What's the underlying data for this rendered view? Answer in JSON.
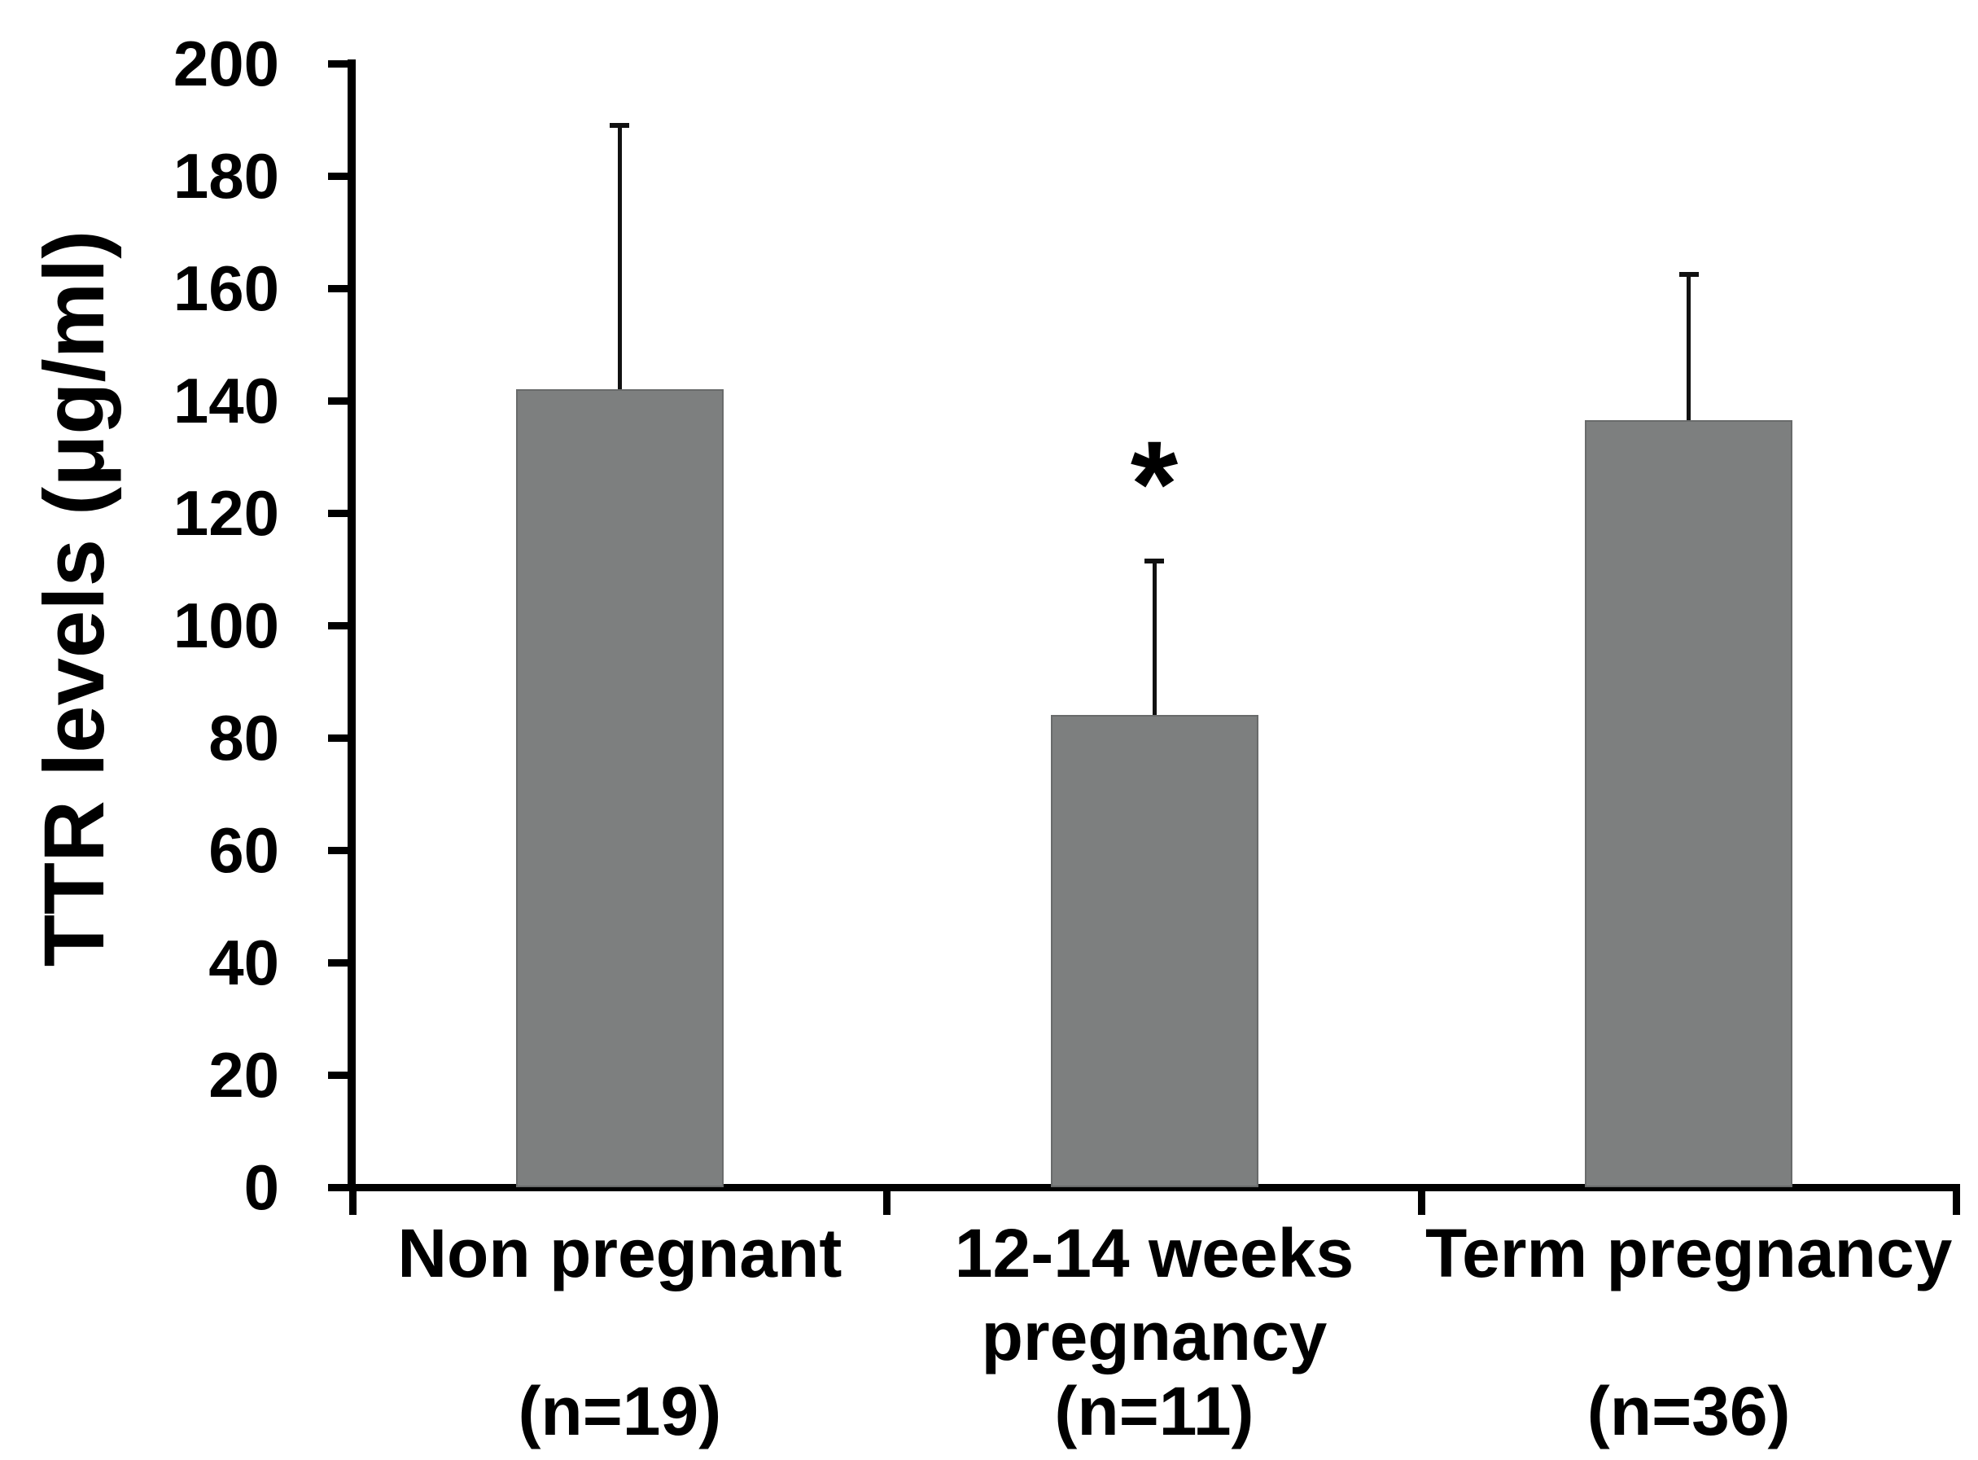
{
  "chart_data": {
    "type": "bar",
    "title": "",
    "xlabel": "",
    "ylabel": "TTR levels (μg/ml)",
    "ylim": [
      0,
      200
    ],
    "ytick_step": 20,
    "yticks": [
      "0",
      "20",
      "40",
      "60",
      "80",
      "100",
      "120",
      "140",
      "160",
      "180",
      "200"
    ],
    "grid": "off",
    "legend": "none",
    "bar_color": "#7d7f7f",
    "bar_border_color": "#696b6b",
    "axis_color": "#000000",
    "error_bar_color": "#111111",
    "categories": [
      {
        "label_lines": [
          "Non pregnant"
        ],
        "n_label": "(n=19)",
        "value": 142,
        "error_up": 47,
        "significance": ""
      },
      {
        "label_lines": [
          "12-14 weeks",
          "pregnancy"
        ],
        "n_label": "(n=11)",
        "value": 84,
        "error_up": 27.5,
        "significance": "*"
      },
      {
        "label_lines": [
          "Term pregnancy"
        ],
        "n_label": "(n=36)",
        "value": 136.5,
        "error_up": 26,
        "significance": ""
      }
    ]
  }
}
